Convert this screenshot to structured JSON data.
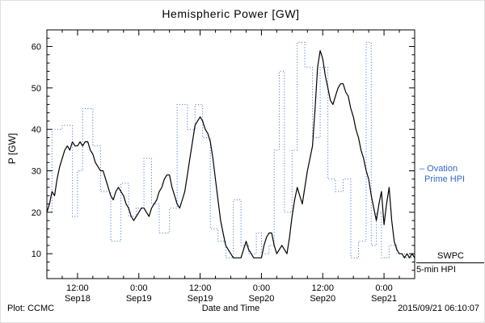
{
  "chart_data": {
    "type": "line",
    "title": "Hemispheric Power [GW]",
    "xlabel": "Date and Time",
    "ylabel": "P [GW]",
    "ylim": [
      4,
      64
    ],
    "xlim_hours": [
      0,
      72
    ],
    "x_unit": "hours since 2015-09-18 06:00 UT",
    "grid": false,
    "legend_position": "right-outside",
    "yticks": [
      10,
      20,
      30,
      40,
      50,
      60
    ],
    "xticks": [
      {
        "t": 6,
        "time": "12:00",
        "date": "Sep18"
      },
      {
        "t": 18,
        "time": "0:00",
        "date": "Sep19"
      },
      {
        "t": 30,
        "time": "12:00",
        "date": "Sep19"
      },
      {
        "t": 42,
        "time": "0:00",
        "date": "Sep20"
      },
      {
        "t": 54,
        "time": "12:00",
        "date": "Sep20"
      },
      {
        "t": 66,
        "time": "0:00",
        "date": "Sep21"
      }
    ],
    "series": [
      {
        "name": "Ovation Prime HPI",
        "color": "#3366cc",
        "style": "dotted-step",
        "points": [
          [
            0,
            20
          ],
          [
            1,
            40
          ],
          [
            3,
            41
          ],
          [
            5,
            19
          ],
          [
            6,
            30
          ],
          [
            7,
            45
          ],
          [
            9,
            36
          ],
          [
            10.5,
            25
          ],
          [
            12.5,
            13
          ],
          [
            14.5,
            27
          ],
          [
            16,
            19
          ],
          [
            17.5,
            21
          ],
          [
            19,
            33
          ],
          [
            20.5,
            22
          ],
          [
            22,
            15
          ],
          [
            24,
            21
          ],
          [
            25.5,
            46
          ],
          [
            27.5,
            40
          ],
          [
            29,
            46
          ],
          [
            30.5,
            38
          ],
          [
            32,
            16
          ],
          [
            33.5,
            13
          ],
          [
            35,
            9
          ],
          [
            36.5,
            23
          ],
          [
            38,
            12
          ],
          [
            39.5,
            10
          ],
          [
            41,
            15
          ],
          [
            42,
            10
          ],
          [
            43.5,
            12
          ],
          [
            44.5,
            35
          ],
          [
            45.5,
            54
          ],
          [
            46.5,
            20
          ],
          [
            48,
            35
          ],
          [
            49,
            61
          ],
          [
            50.5,
            55
          ],
          [
            52,
            38
          ],
          [
            53.5,
            55
          ],
          [
            55,
            28
          ],
          [
            56.5,
            25
          ],
          [
            58,
            28
          ],
          [
            59.5,
            9
          ],
          [
            61,
            13
          ],
          [
            62.5,
            61
          ],
          [
            63.5,
            12
          ],
          [
            64.5,
            20
          ],
          [
            65.5,
            9
          ],
          [
            67,
            12
          ],
          [
            68.5,
            10
          ],
          [
            70,
            9
          ],
          [
            72,
            9
          ]
        ]
      },
      {
        "name": "SWPC 5-min HPI",
        "color": "#000000",
        "style": "solid",
        "points": [
          [
            0,
            20
          ],
          [
            0.5,
            22
          ],
          [
            1,
            25
          ],
          [
            1.5,
            24
          ],
          [
            2,
            28
          ],
          [
            2.5,
            31
          ],
          [
            3,
            33
          ],
          [
            3.5,
            35
          ],
          [
            4,
            36
          ],
          [
            4.5,
            35
          ],
          [
            5,
            37
          ],
          [
            5.5,
            36
          ],
          [
            6,
            36
          ],
          [
            6.5,
            37
          ],
          [
            7,
            36
          ],
          [
            7.5,
            37
          ],
          [
            8,
            37
          ],
          [
            8.5,
            35
          ],
          [
            9,
            34
          ],
          [
            9.5,
            32
          ],
          [
            10,
            31
          ],
          [
            10.5,
            30
          ],
          [
            11,
            30
          ],
          [
            11.5,
            28
          ],
          [
            12,
            26
          ],
          [
            12.5,
            24
          ],
          [
            13,
            23
          ],
          [
            13.5,
            25
          ],
          [
            14,
            26
          ],
          [
            14.5,
            25
          ],
          [
            15,
            24
          ],
          [
            15.5,
            22
          ],
          [
            16,
            21
          ],
          [
            16.5,
            19
          ],
          [
            17,
            18
          ],
          [
            17.5,
            19
          ],
          [
            18,
            20
          ],
          [
            18.5,
            21
          ],
          [
            19,
            21
          ],
          [
            19.5,
            20
          ],
          [
            20,
            19
          ],
          [
            20.5,
            21
          ],
          [
            21,
            22
          ],
          [
            21.5,
            23
          ],
          [
            22,
            25
          ],
          [
            22.5,
            26
          ],
          [
            23,
            28
          ],
          [
            23.5,
            29
          ],
          [
            24,
            29
          ],
          [
            24.5,
            26
          ],
          [
            25,
            24
          ],
          [
            25.5,
            22
          ],
          [
            26,
            21
          ],
          [
            26.5,
            23
          ],
          [
            27,
            25
          ],
          [
            27.5,
            29
          ],
          [
            28,
            33
          ],
          [
            28.5,
            37
          ],
          [
            29,
            41
          ],
          [
            29.5,
            42
          ],
          [
            30,
            43
          ],
          [
            30.5,
            42
          ],
          [
            31,
            40
          ],
          [
            31.5,
            39
          ],
          [
            32,
            37
          ],
          [
            32.5,
            33
          ],
          [
            33,
            28
          ],
          [
            33.5,
            23
          ],
          [
            34,
            18
          ],
          [
            34.5,
            15
          ],
          [
            35,
            12
          ],
          [
            35.5,
            11
          ],
          [
            36,
            10
          ],
          [
            36.5,
            9
          ],
          [
            37,
            9
          ],
          [
            38,
            9
          ],
          [
            38.5,
            11
          ],
          [
            39,
            13
          ],
          [
            39.5,
            11
          ],
          [
            40,
            10
          ],
          [
            40.5,
            9
          ],
          [
            41,
            9
          ],
          [
            42,
            9
          ],
          [
            42.5,
            12
          ],
          [
            43,
            14
          ],
          [
            43.5,
            15
          ],
          [
            44,
            15
          ],
          [
            44.5,
            12
          ],
          [
            45,
            10
          ],
          [
            45.5,
            11
          ],
          [
            46,
            12
          ],
          [
            46.5,
            11
          ],
          [
            47,
            10
          ],
          [
            47.5,
            14
          ],
          [
            48,
            19
          ],
          [
            48.5,
            23
          ],
          [
            49,
            26
          ],
          [
            49.5,
            24
          ],
          [
            50,
            22
          ],
          [
            50.5,
            26
          ],
          [
            51,
            30
          ],
          [
            51.5,
            33
          ],
          [
            52,
            36
          ],
          [
            52.5,
            45
          ],
          [
            53,
            55
          ],
          [
            53.5,
            59
          ],
          [
            54,
            57
          ],
          [
            54.5,
            53
          ],
          [
            55,
            50
          ],
          [
            55.5,
            47
          ],
          [
            56,
            46
          ],
          [
            56.5,
            48
          ],
          [
            57,
            50
          ],
          [
            57.5,
            51
          ],
          [
            58,
            51
          ],
          [
            58.5,
            49
          ],
          [
            59,
            48
          ],
          [
            59.5,
            45
          ],
          [
            60,
            43
          ],
          [
            60.5,
            40
          ],
          [
            61,
            38
          ],
          [
            61.5,
            35
          ],
          [
            62,
            33
          ],
          [
            62.5,
            30
          ],
          [
            63,
            28
          ],
          [
            63.5,
            24
          ],
          [
            64,
            21
          ],
          [
            64.5,
            18
          ],
          [
            65,
            22
          ],
          [
            65.5,
            25
          ],
          [
            66,
            17
          ],
          [
            66.5,
            22
          ],
          [
            67,
            26
          ],
          [
            67.5,
            18
          ],
          [
            68,
            13
          ],
          [
            68.5,
            11
          ],
          [
            69,
            10
          ],
          [
            69.5,
            10
          ],
          [
            70,
            9
          ],
          [
            70.5,
            10
          ],
          [
            71,
            9
          ],
          [
            71.5,
            10
          ],
          [
            72,
            9
          ]
        ]
      }
    ]
  },
  "legend": {
    "ovation": {
      "line1": "– Ovation",
      "line2": "Prime HPI",
      "color": "#3366cc"
    },
    "swpc": {
      "line1": "SWPC",
      "line2": "5-min HPI"
    }
  },
  "footer": {
    "plot_source": "Plot: CCMC",
    "timestamp": "2015/09/21 06:10:07"
  }
}
